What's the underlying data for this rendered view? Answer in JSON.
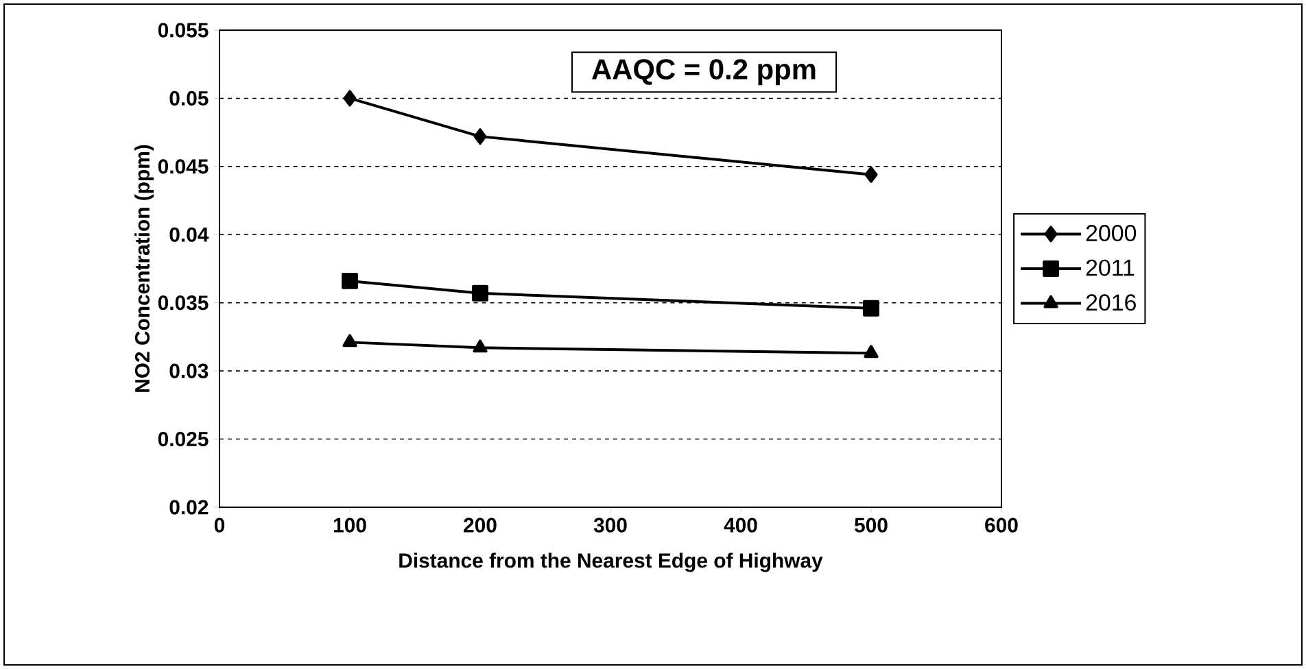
{
  "chart_data": {
    "type": "line",
    "xlabel": "Distance from the Nearest Edge of Highway",
    "ylabel": "NO2 Concentration (ppm)",
    "x": [
      100,
      200,
      500
    ],
    "series": [
      {
        "name": "2000",
        "color": "#000000",
        "marker": "diamond",
        "values": [
          0.05,
          0.0472,
          0.0444
        ]
      },
      {
        "name": "2011",
        "color": "#000000",
        "marker": "square",
        "values": [
          0.0366,
          0.0357,
          0.0346
        ]
      },
      {
        "name": "2016",
        "color": "#000000",
        "marker": "triangle",
        "values": [
          0.0321,
          0.0317,
          0.0313
        ]
      }
    ],
    "xlim": [
      0,
      600
    ],
    "xticks": [
      0,
      100,
      200,
      300,
      400,
      500,
      600
    ],
    "ylim": [
      0.02,
      0.055
    ],
    "yticks": [
      0.02,
      0.025,
      0.03,
      0.035,
      0.04,
      0.045,
      0.05,
      0.055
    ],
    "grid": "y",
    "line_style": "solid",
    "legend": "right",
    "annotations": [
      "AAQC = 0.2 ppm"
    ]
  }
}
